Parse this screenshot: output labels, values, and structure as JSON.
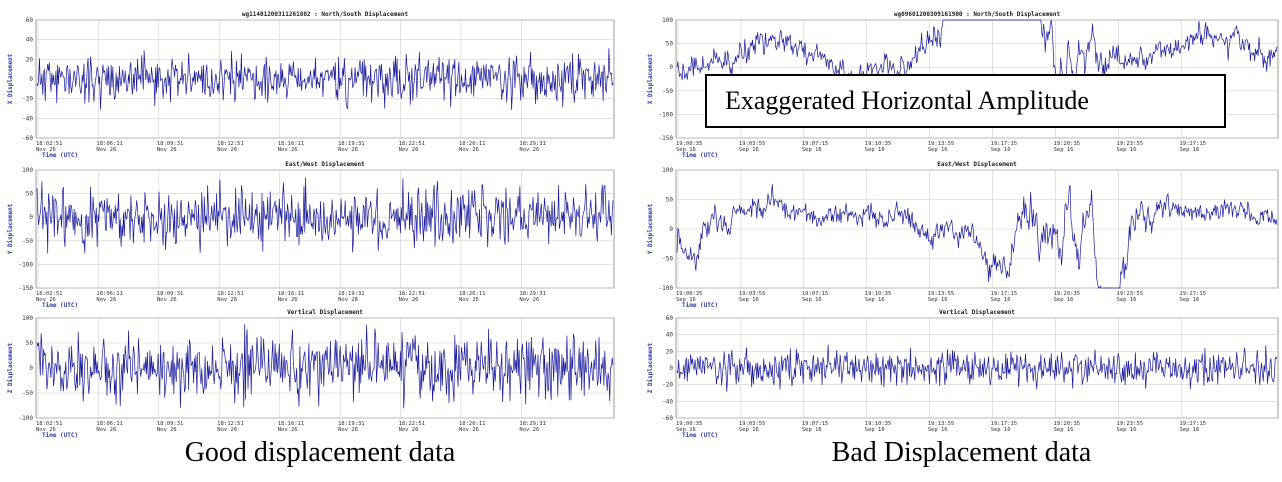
{
  "captions": {
    "left": "Good displacement data",
    "right": "Bad Displacement data"
  },
  "annotation": "Exaggerated Horizontal Amplitude",
  "colors": {
    "line": "#1a1a9c",
    "grid": "#d0d0d0",
    "axis_label": "#2a3ca8",
    "border": "#888888"
  },
  "chart_data": [
    {
      "type": "line",
      "group": "good",
      "title": "wg11401200311261802 : North/South Displacement",
      "ylabel": "X Displacement",
      "xlabel": "Time (UTC)",
      "ylim": [
        -60,
        60
      ],
      "yticks": [
        -60,
        -40,
        -20,
        0,
        20,
        40,
        60
      ],
      "xticks": [
        "18:02:51",
        "18:06:11",
        "18:09:31",
        "18:12:51",
        "18:16:11",
        "18:19:31",
        "18:22:51",
        "18:26:11",
        "18:29:31"
      ],
      "xdate": "Nov 26",
      "series": [
        {
          "amplitude": 20,
          "bursts": 0,
          "seed": 11
        }
      ]
    },
    {
      "type": "line",
      "group": "good",
      "title": "East/West Displacement",
      "ylabel": "Y Displacement",
      "xlabel": "Time (UTC)",
      "ylim": [
        -150,
        100
      ],
      "yticks": [
        -150,
        -100,
        -50,
        0,
        50,
        100
      ],
      "xticks": [
        "18:02:51",
        "18:06:11",
        "18:09:31",
        "18:12:51",
        "18:16:11",
        "18:19:31",
        "18:22:51",
        "18:26:11",
        "18:29:31"
      ],
      "xdate": "Nov 26",
      "series": [
        {
          "amplitude": 55,
          "bursts": 0,
          "seed": 23
        }
      ]
    },
    {
      "type": "line",
      "group": "good",
      "title": "Vertical Displacement",
      "ylabel": "Z Displacement",
      "xlabel": "Time (UTC)",
      "ylim": [
        -100,
        100
      ],
      "yticks": [
        -100,
        -50,
        0,
        50,
        100
      ],
      "xticks": [
        "18:02:51",
        "18:06:11",
        "18:09:31",
        "18:12:51",
        "18:16:11",
        "18:19:31",
        "18:22:51",
        "18:26:11",
        "18:29:31"
      ],
      "xdate": "Nov 26",
      "series": [
        {
          "amplitude": 55,
          "bursts": 0,
          "seed": 37
        }
      ]
    },
    {
      "type": "line",
      "group": "bad",
      "title": "wg09601200309161900 : North/South Displacement",
      "ylabel": "X Displacement",
      "xlabel": "Time (UTC)",
      "ylim": [
        -150,
        100
      ],
      "yticks": [
        -150,
        -100,
        -50,
        0,
        50,
        100
      ],
      "xticks": [
        "19:00:35",
        "19:03:55",
        "19:07:15",
        "19:10:35",
        "19:13:55",
        "19:17:15",
        "19:20:35",
        "19:23:55",
        "19:27:15"
      ],
      "xdate": "Sep 16",
      "series": [
        {
          "amplitude": 35,
          "bursts": 1,
          "seed": 53
        }
      ]
    },
    {
      "type": "line",
      "group": "bad",
      "title": "East/West Displacement",
      "ylabel": "Y Displacement",
      "xlabel": "Time (UTC)",
      "ylim": [
        -100,
        100
      ],
      "yticks": [
        -100,
        -50,
        0,
        50,
        100
      ],
      "xticks": [
        "19:00:35",
        "19:03:55",
        "19:07:15",
        "19:10:35",
        "19:13:55",
        "19:17:15",
        "19:20:35",
        "19:23:55",
        "19:27:15"
      ],
      "xdate": "Sep 16",
      "series": [
        {
          "amplitude": 25,
          "bursts": 1,
          "seed": 71
        }
      ]
    },
    {
      "type": "line",
      "group": "bad",
      "title": "Vertical Displacement",
      "ylabel": "Z Displacement",
      "xlabel": "Time (UTC)",
      "ylim": [
        -60,
        60
      ],
      "yticks": [
        -60,
        -40,
        -20,
        0,
        20,
        40,
        60
      ],
      "xticks": [
        "19:00:35",
        "19:03:55",
        "19:07:15",
        "19:10:35",
        "19:13:55",
        "19:17:15",
        "19:20:35",
        "19:23:55",
        "19:27:15"
      ],
      "xdate": "Sep 16",
      "series": [
        {
          "amplitude": 18,
          "bursts": 0,
          "seed": 89
        }
      ]
    }
  ]
}
